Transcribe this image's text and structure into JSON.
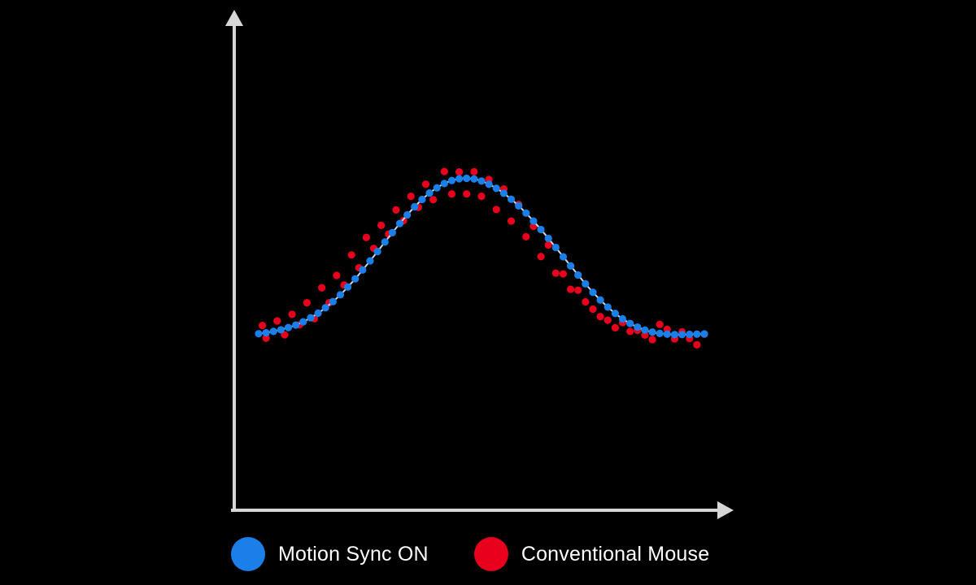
{
  "chart_data": {
    "type": "scatter",
    "title": "",
    "xlabel": "",
    "ylabel": "",
    "xlim": [
      0,
      60
    ],
    "ylim": [
      0,
      10
    ],
    "grid": false,
    "legend_position": "bottom",
    "series": [
      {
        "name": "Motion Sync ON",
        "color": "#1a7fe8",
        "line": true,
        "line_color": "#cfd8e0",
        "x": [
          0,
          1,
          2,
          3,
          4,
          5,
          6,
          7,
          8,
          9,
          10,
          11,
          12,
          13,
          14,
          15,
          16,
          17,
          18,
          19,
          20,
          21,
          22,
          23,
          24,
          25,
          26,
          27,
          28,
          29,
          30,
          31,
          32,
          33,
          34,
          35,
          36,
          37,
          38,
          39,
          40,
          41,
          42,
          43,
          44,
          45,
          46,
          47,
          48,
          49,
          50,
          51,
          52,
          53,
          54,
          55,
          56,
          57,
          58,
          59,
          60
        ],
        "y": [
          0.69,
          0.73,
          0.79,
          0.86,
          0.96,
          1.07,
          1.21,
          1.39,
          1.59,
          1.83,
          2.1,
          2.4,
          2.74,
          3.1,
          3.49,
          3.89,
          4.3,
          4.72,
          5.13,
          5.53,
          5.91,
          6.27,
          6.59,
          6.87,
          7.1,
          7.29,
          7.42,
          7.5,
          7.52,
          7.49,
          7.4,
          7.26,
          7.08,
          6.86,
          6.6,
          6.31,
          5.99,
          5.64,
          5.27,
          4.88,
          4.48,
          4.07,
          3.67,
          3.27,
          2.88,
          2.51,
          2.17,
          1.86,
          1.58,
          1.34,
          1.14,
          0.98,
          0.85,
          0.76,
          0.7,
          0.67,
          0.65,
          0.65,
          0.66,
          0.67,
          0.68
        ]
      },
      {
        "name": "Conventional Mouse",
        "color": "#e8001c",
        "line": false,
        "x": [
          0.5,
          1,
          2.5,
          3.5,
          4.5,
          5.5,
          6.5,
          7.5,
          8.5,
          9.5,
          10.5,
          11.5,
          12.5,
          13.5,
          14.5,
          15.5,
          16.5,
          17.5,
          18.5,
          19.5,
          20.5,
          21.5,
          22.5,
          23.5,
          25,
          26,
          27,
          28,
          29,
          30,
          31,
          32,
          33,
          34,
          35,
          36,
          37,
          38,
          39,
          40,
          41,
          42,
          43,
          44,
          45,
          46,
          47,
          48,
          49,
          50,
          51,
          52,
          53,
          54,
          55,
          56,
          57,
          58,
          59,
          60
        ],
        "y": [
          1.05,
          0.49,
          1.25,
          0.64,
          1.54,
          1.08,
          2.05,
          1.35,
          2.71,
          2.05,
          3.25,
          2.83,
          4.15,
          3.59,
          4.92,
          4.44,
          5.45,
          5.07,
          6.13,
          5.66,
          6.73,
          6.24,
          7.26,
          6.58,
          7.82,
          6.83,
          7.8,
          6.83,
          7.81,
          6.73,
          7.47,
          6.15,
          7.05,
          5.64,
          6.37,
          4.95,
          5.41,
          4.08,
          4.59,
          3.35,
          3.32,
          2.64,
          2.6,
          2.09,
          1.77,
          1.44,
          1.28,
          0.95,
          1.18,
          0.79,
          0.84,
          0.63,
          0.43,
          1.1,
          0.88,
          0.46,
          0.77,
          0.48,
          0.2,
          0.67
        ]
      }
    ]
  },
  "legend": {
    "items": [
      {
        "label": "Motion Sync ON",
        "color": "#1a7fe8"
      },
      {
        "label": "Conventional Mouse",
        "color": "#e8001c"
      }
    ]
  },
  "axis_color": "#d6d6d6"
}
